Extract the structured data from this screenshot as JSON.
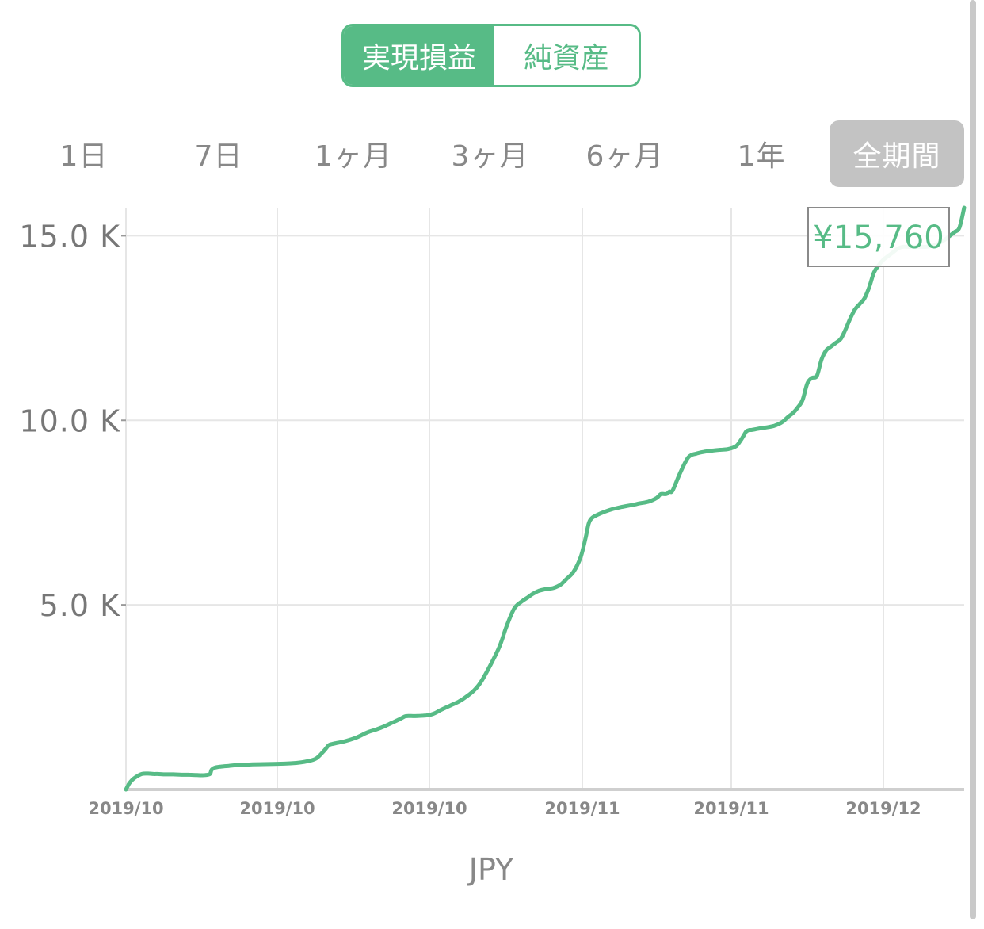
{
  "toggle": {
    "realized_label": "実現損益",
    "networth_label": "純資産"
  },
  "periods": [
    "1日",
    "7日",
    "1ヶ月",
    "3ヶ月",
    "6ヶ月",
    "1年",
    "全期間"
  ],
  "active_period": "全期間",
  "colors": {
    "accent": "#57bb86",
    "grid": "#e6e6e6",
    "active_tab_bg": "#c3c3c3"
  },
  "chart_data": {
    "type": "line",
    "title": "",
    "xlabel": "JPY",
    "ylabel": "",
    "ylim": [
      0,
      15760
    ],
    "yticks": [
      {
        "value": 5000,
        "label": "5.0 K"
      },
      {
        "value": 10000,
        "label": "10.0 K"
      },
      {
        "value": 15000,
        "label": "15.0 K"
      }
    ],
    "xticks": [
      "2019/10",
      "2019/10",
      "2019/10",
      "2019/11",
      "2019/11",
      "2019/12"
    ],
    "callout": "¥15,760",
    "series": [
      {
        "x": [
          0,
          2,
          4,
          10,
          20,
          30,
          35,
          40,
          50,
          60,
          70,
          80,
          90,
          100,
          106,
          108,
          112,
          120,
          130,
          140,
          160,
          180,
          200,
          215,
          228,
          240,
          250,
          256,
          262,
          266,
          275,
          290,
          305,
          315,
          325,
          335,
          345,
          352,
          356,
          360,
          368,
          375,
          380,
          388,
          398,
          410,
          420,
          430,
          440,
          450,
          470,
          480,
          490,
          500,
          507,
          512,
          517,
          521,
          528,
          535,
          540,
          548,
          556,
          565,
          574,
          580,
          584,
          588,
          595,
          605,
          615,
          625,
          635,
          640,
          648,
          660,
          670,
          675,
          680,
          683,
          686,
          690,
          700,
          710,
          720,
          730,
          740,
          750,
          760,
          770,
          776,
          780,
          783,
          786,
          790,
          795,
          800,
          806,
          812,
          818,
          824,
          830,
          836,
          842,
          848,
          854,
          860,
          866,
          872,
          878,
          884,
          890,
          896,
          902,
          908,
          914,
          920,
          926,
          932,
          938,
          944,
          950,
          956,
          962,
          968,
          974,
          980,
          986,
          992,
          998,
          1004,
          1010,
          1016,
          1022,
          1028,
          1034,
          1040,
          1046,
          1052,
          1058
        ],
        "y": [
          0,
          80,
          160,
          300,
          420,
          430,
          420,
          420,
          410,
          410,
          400,
          400,
          390,
          390,
          420,
          530,
          590,
          620,
          640,
          660,
          680,
          690,
          700,
          720,
          760,
          840,
          1050,
          1200,
          1240,
          1260,
          1300,
          1400,
          1550,
          1620,
          1700,
          1800,
          1900,
          1980,
          1990,
          1990,
          1990,
          2000,
          2010,
          2050,
          2160,
          2280,
          2380,
          2520,
          2700,
          2980,
          3800,
          4400,
          4900,
          5100,
          5200,
          5280,
          5340,
          5380,
          5420,
          5440,
          5460,
          5540,
          5700,
          5900,
          6300,
          6800,
          7200,
          7350,
          7440,
          7530,
          7600,
          7650,
          7690,
          7710,
          7750,
          7800,
          7900,
          8000,
          8000,
          8010,
          8070,
          8100,
          8600,
          9000,
          9100,
          9150,
          9180,
          9200,
          9220,
          9300,
          9460,
          9600,
          9700,
          9730,
          9740,
          9760,
          9780,
          9800,
          9820,
          9850,
          9900,
          9980,
          10100,
          10200,
          10350,
          10550,
          11000,
          11150,
          11200,
          11650,
          11900,
          12000,
          12100,
          12200,
          12450,
          12750,
          13000,
          13150,
          13300,
          13600,
          14000,
          14200,
          14350,
          14450,
          14550,
          14650,
          14700,
          14700,
          14700,
          14700,
          14700,
          14700,
          14720,
          14760,
          14820,
          14900,
          15000,
          15100,
          15220,
          15760
        ]
      }
    ]
  }
}
